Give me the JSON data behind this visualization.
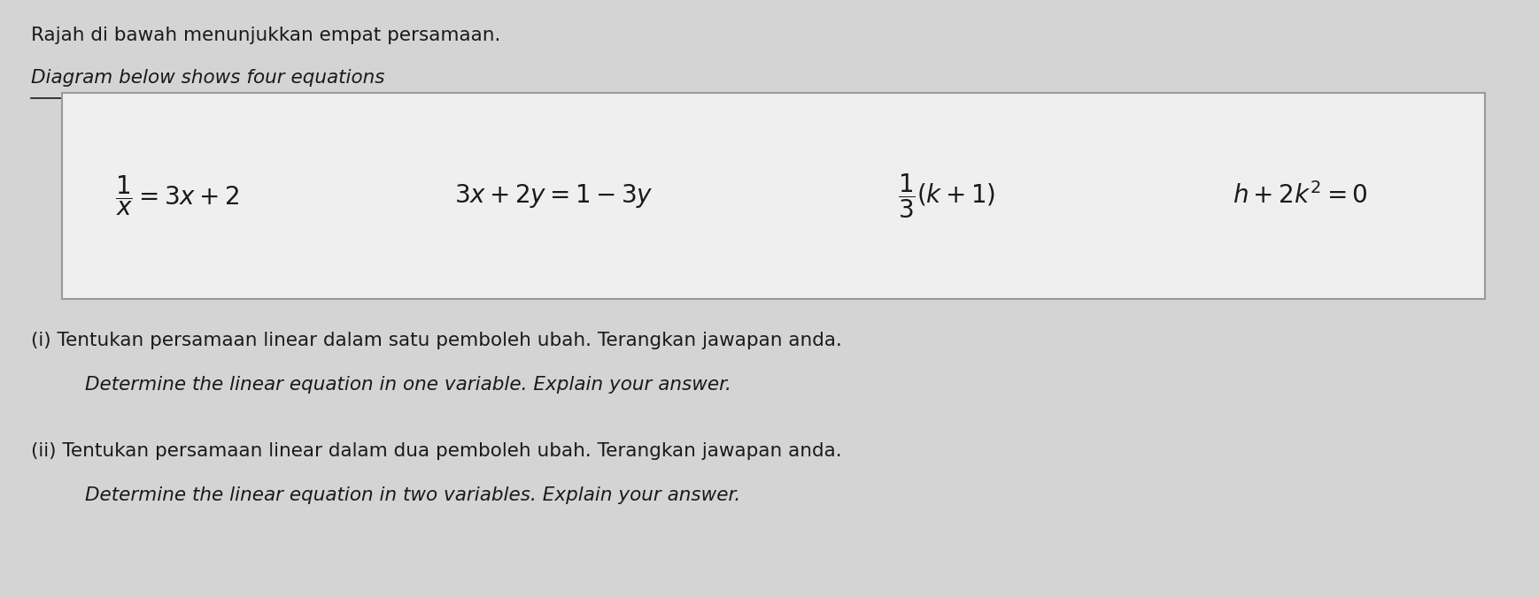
{
  "bg_color": "#d4d4d4",
  "box_bg": "#efefef",
  "title_line1": "Rajah di bawah menunjukkan empat persamaan.",
  "title_line2": "Diagram below shows four equations",
  "eq1": "$\\dfrac{1}{x} = 3x + 2$",
  "eq2": "$3x + 2y = 1 - 3y$",
  "eq3": "$\\dfrac{1}{3}( k+ 1)$",
  "eq4": "$h + 2k^2 = 0$",
  "part_i_line1": "(i) Tentukan persamaan linear dalam satu pemboleh ubah. Terangkan jawapan anda.",
  "part_i_line2": "Determine the linear equation in one variable. Explain your answer.",
  "part_ii_line1": "(ii) Tentukan persamaan linear dalam dua pemboleh ubah. Terangkan jawapan anda.",
  "part_ii_line2": "Determine the linear equation in two variables. Explain your answer.",
  "text_color": "#1a1a1a",
  "box_edge_color": "#999999"
}
